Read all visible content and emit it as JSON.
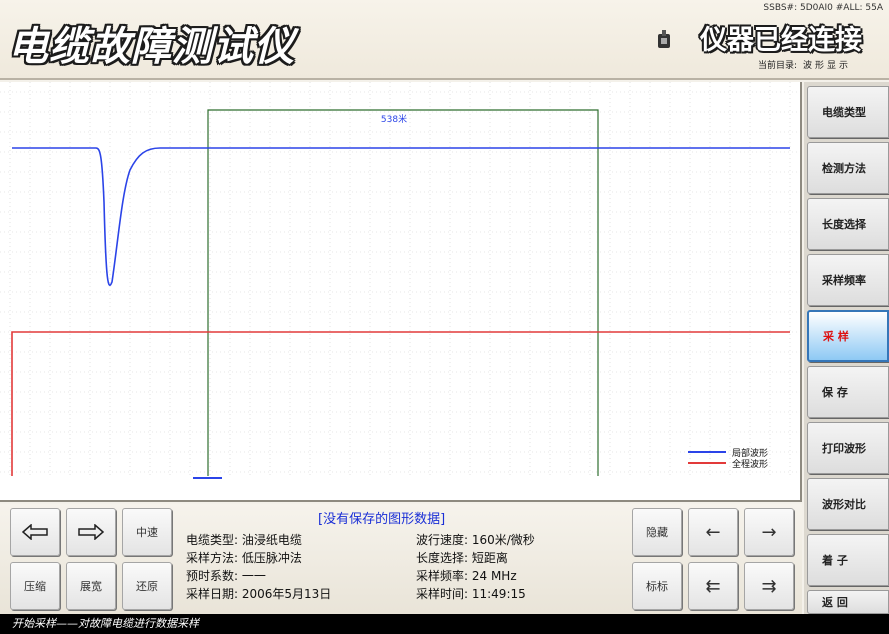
{
  "header": {
    "app_title": "电缆故障测试仪",
    "top_info": "SSBS#: 5D0AI0 #ALL: 55A",
    "connection_status": "仪器已经连接",
    "current_dir_label": "当前目录:",
    "current_dir_value": "波形显示"
  },
  "chart": {
    "cursor_label": "538米",
    "legend": [
      {
        "label": "局部波形",
        "color": "#2b44e8"
      },
      {
        "label": "全程波形",
        "color": "#e23a3a"
      }
    ],
    "colors": {
      "blue": "#2b44e8",
      "red": "#e23a3a",
      "cursor": "#2f6e2f",
      "grid": "#cfcfcf"
    }
  },
  "chart_data": {
    "type": "line",
    "series": [
      {
        "name": "局部波形",
        "color": "#2b44e8",
        "y": [
          65,
          65,
          65,
          65,
          42,
          0,
          30,
          58,
          64,
          65,
          65,
          65,
          65,
          65,
          65
        ]
      },
      {
        "name": "全程波形",
        "color": "#e23a3a",
        "y": [
          0,
          50,
          50,
          50,
          50,
          50,
          50,
          50,
          50,
          50,
          50,
          50,
          50,
          50,
          50
        ]
      }
    ],
    "cursor_label": "538米",
    "grid": true,
    "legend_position": "bottom-right"
  },
  "info": {
    "no_data_text": "[没有保存的图形数据]",
    "left_params": [
      "电缆类型: 油浸纸电缆",
      "采样方法: 低压脉冲法",
      "预时系数: 一一",
      "采样日期: 2006年5月13日"
    ],
    "right_params": [
      "波行速度: 160米/微秒",
      "长度选择: 短距离",
      "采样频率: 24 MHz",
      "采样时间: 11:49:15"
    ]
  },
  "buttons": {
    "left_arrow": "left-arrow",
    "right_arrow": "right-arrow",
    "center": "中速",
    "compress": "压缩",
    "expand": "展宽",
    "restore": "还原",
    "invert": "隐藏",
    "mark": "标标",
    "nav_left": "←",
    "nav_right": "→",
    "nav_first": "⇇",
    "nav_last": "⇉"
  },
  "side_menu": [
    {
      "label": "电缆类型",
      "active": false
    },
    {
      "label": "检测方法",
      "active": false
    },
    {
      "label": "长度选择",
      "active": false
    },
    {
      "label": "采样频率",
      "active": false
    },
    {
      "label": "采 样",
      "active": true
    },
    {
      "label": "保 存",
      "active": false
    },
    {
      "label": "打印波形",
      "active": false
    },
    {
      "label": "波形对比",
      "active": false
    },
    {
      "label": "着 子",
      "active": false
    },
    {
      "label": "返 回",
      "active": false
    }
  ],
  "status_bar": "开始采样——对故障电缆进行数据采样"
}
